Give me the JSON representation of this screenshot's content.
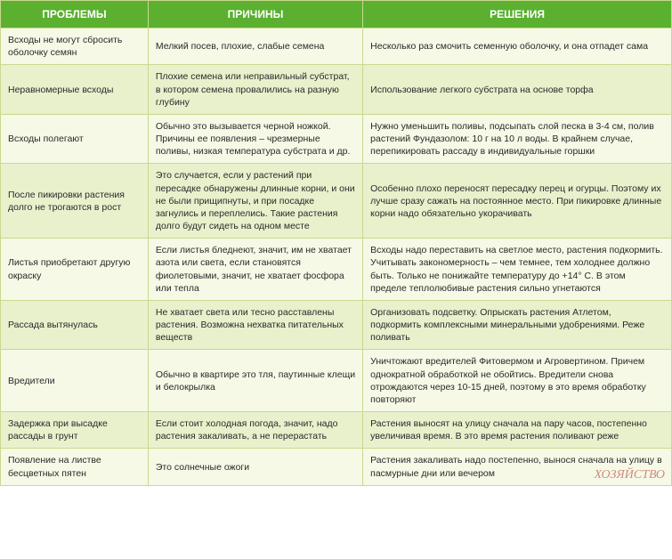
{
  "table": {
    "header_bg": "#5bb030",
    "header_fg": "#ffffff",
    "row_odd_bg": "#f5f9e6",
    "row_even_bg": "#e8f0cc",
    "border_color": "#c9d98f",
    "font_size_header": 12,
    "font_size_cell": 10.5,
    "columns": [
      "ПРОБЛЕМЫ",
      "ПРИЧИНЫ",
      "РЕШЕНИЯ"
    ],
    "col_widths_pct": [
      22,
      32,
      46
    ],
    "rows": [
      {
        "problem": "Всходы не могут сбросить оболочку семян",
        "cause": "Мелкий посев, плохие, слабые семена",
        "solution": "Несколько раз смочить семенную оболочку, и она отпадет сама"
      },
      {
        "problem": "Неравномерные всходы",
        "cause": "Плохие семена или неправильный субстрат, в котором семена провалились на разную глубину",
        "solution": "Использование легкого субстрата на основе торфа"
      },
      {
        "problem": "Всходы полегают",
        "cause": "Обычно это вызывается черной ножкой. Причины ее появления – чрезмерные поливы, низкая температура субстрата и др.",
        "solution": "Нужно уменьшить поливы, подсыпать слой песка в 3-4 см, полив растений Фундазолом: 10 г на 10 л воды. В крайнем случае, перепикировать рассаду в индивидуальные горшки"
      },
      {
        "problem": "После пикировки растения долго не трогаются в рост",
        "cause": "Это случается, если у растений при пересадке обнаружены длинные корни, и они не были прищипнуты, и при посадке загнулись и переплелись. Такие растения долго будут сидеть на одном месте",
        "solution": "Особенно плохо переносят пересадку перец и огурцы. Поэтому их лучше сразу сажать на постоянное место. При пикировке длинные корни надо обязательно укорачивать"
      },
      {
        "problem": "Листья приобретают другую окраску",
        "cause": "Если листья бледнеют, значит, им не хватает азота или света, если становятся фиолетовыми, значит, не хватает фосфора или тепла",
        "solution": "Всходы надо переставить на светлое место, растения подкормить. Учитывать закономерность – чем темнее, тем холоднее должно быть. Только не понижайте температуру до +14° С. В этом пределе теплолюбивые растения сильно угнетаются"
      },
      {
        "problem": "Рассада вытянулась",
        "cause": "Не хватает света или тесно расставлены растения. Возможна нехватка питательных веществ",
        "solution": "Организовать подсветку. Опрыскать растения Атлетом, подкормить комплексными минеральными удобрениями. Реже поливать"
      },
      {
        "problem": "Вредители",
        "cause": "Обычно в квартире это тля, паутинные клещи и белокрылка",
        "solution": "Уничтожают вредителей Фитовермом и Агровертином. Причем однократной обработкой не обойтись. Вредители снова отрождаются через 10-15 дней, поэтому в это время обработку повторяют"
      },
      {
        "problem": "Задержка при высадке рассады в грунт",
        "cause": "Если стоит холодная погода, значит, надо растения закаливать, а не перерастать",
        "solution": "Растения выносят на улицу сначала на пару часов, постепенно увеличивая время. В это время растения поливают реже"
      },
      {
        "problem": "Появление на листве бесцветных пятен",
        "cause": "Это солнечные ожоги",
        "solution": "Растения закаливать надо постепенно, вынося сначала на улицу в пасмурные дни или вечером"
      }
    ]
  },
  "watermark": "ХОЗЯЙСТВО"
}
